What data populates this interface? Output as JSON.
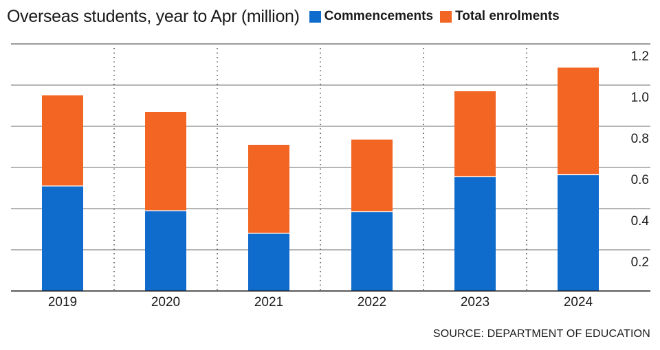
{
  "header": {
    "title": "Overseas students, year to Apr (million)"
  },
  "legend": [
    {
      "label": "Commencements",
      "color": "#0f6bcc"
    },
    {
      "label": "Total enrolments",
      "color": "#f26522"
    }
  ],
  "source": "SOURCE: DEPARTMENT OF EDUCATION",
  "chart_data": {
    "type": "bar",
    "stacked": true,
    "categories": [
      "2019",
      "2020",
      "2021",
      "2022",
      "2023",
      "2024"
    ],
    "series": [
      {
        "name": "Commencements",
        "color": "#0f6bcc",
        "values": [
          0.51,
          0.39,
          0.28,
          0.385,
          0.555,
          0.565
        ]
      },
      {
        "name": "Total enrolments",
        "color": "#f26522",
        "values": [
          0.44,
          0.48,
          0.43,
          0.35,
          0.415,
          0.52
        ]
      }
    ],
    "ylim": [
      0,
      1.2
    ],
    "yticks": [
      0.2,
      0.4,
      0.6,
      0.8,
      1.0,
      1.2
    ],
    "ytick_labels": [
      "0.2",
      "0.4",
      "0.6",
      "0.8",
      "1.0",
      "1.2"
    ],
    "yaxis_side": "right",
    "grid": true,
    "legend_position": "top",
    "xlabel": "",
    "ylabel": ""
  }
}
